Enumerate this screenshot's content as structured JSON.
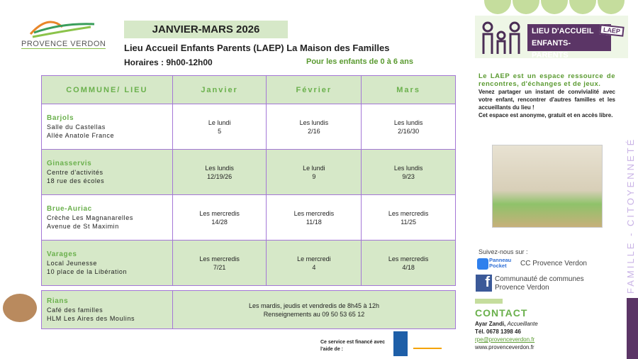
{
  "logo": {
    "name": "PROVENCE VERDON"
  },
  "header": {
    "period": "JANVIER-MARS 2026",
    "title": "Lieu Accueil Enfants Parents (LAEP) La Maison des Familles",
    "hours": "Horaires : 9h00-12h00",
    "age": "Pour les enfants de 0 à 6 ans"
  },
  "table": {
    "headers": [
      "COMMUNE/ LIEU",
      "Janvier",
      "Février",
      "Mars"
    ],
    "rows": [
      {
        "commune": "Barjols",
        "place": "Salle du Castellas",
        "address": "Allée Anatole France",
        "jan": [
          "Le lundi",
          "5"
        ],
        "feb": [
          "Les lundis",
          "2/16"
        ],
        "mar": [
          "Les lundis",
          "2/16/30"
        ]
      },
      {
        "commune": "Ginasservis",
        "place": "Centre d'activités",
        "address": "18 rue des écoles",
        "jan": [
          "Les lundis",
          "12/19/26"
        ],
        "feb": [
          "Le lundi",
          "9"
        ],
        "mar": [
          "Les lundis",
          "9/23"
        ]
      },
      {
        "commune": "Brue-Auriac",
        "place": "Crèche Les Magnanarelles",
        "address": "Avenue de St Maximin",
        "jan": [
          "Les mercredis",
          "14/28"
        ],
        "feb": [
          "Les mercredis",
          "11/18"
        ],
        "mar": [
          "Les mercredis",
          "11/25"
        ]
      },
      {
        "commune": "Varages",
        "place": "Local Jeunesse",
        "address": "10 place de la Libération",
        "jan": [
          "Les mercredis",
          "7/21"
        ],
        "feb": [
          "Le mercredi",
          "4"
        ],
        "mar": [
          "Les mercredis",
          "4/18"
        ]
      }
    ],
    "rians": {
      "commune": "Rians",
      "place": "Café des familles",
      "address": "HLM Les Aires des Moulins",
      "schedule": "Les mardis, jeudis et vendredis de 8h45 à 12h",
      "info": "Renseignements au 09 50 53 65 12"
    }
  },
  "funding": {
    "text": "Ce service est financé avec l'aide de :"
  },
  "laep_logo": {
    "line1": "LIEU D'ACCUEIL",
    "line2": "ENFANTS-PARENTS",
    "badge": "LAEP"
  },
  "description": {
    "lead": "Le LAEP est un espace ressource de rencontres, d'échanges et de jeux.",
    "body1": "Venez partager un instant de convivialité avec votre enfant, rencontrer d'autres familles et les accueillants du lieu !",
    "body2": "Cet espace est anonyme, gratuit et en accès libre."
  },
  "social": {
    "follow": "Suivez-nous sur :",
    "panneau": "Panneau",
    "pocket": "Pocket",
    "panneau_label": "CC Provence Verdon",
    "fb_line1": "Communauté de communes",
    "fb_line2": "Provence Verdon"
  },
  "contact": {
    "title": "CONTACT",
    "name": "Ayar Zandi,",
    "role": "Accueillante",
    "phone": "Tél. 0678 1398 46",
    "email": "rpe@provenceverdon.fr",
    "web": "www.provenceverdon.fr"
  },
  "side": {
    "vertical": "FAMILLE - CITOYENNETÉ"
  },
  "colors": {
    "green": "#6ab04c",
    "light_green": "#d6e8c8",
    "purple": "#5b3566",
    "border": "#a477d6"
  }
}
